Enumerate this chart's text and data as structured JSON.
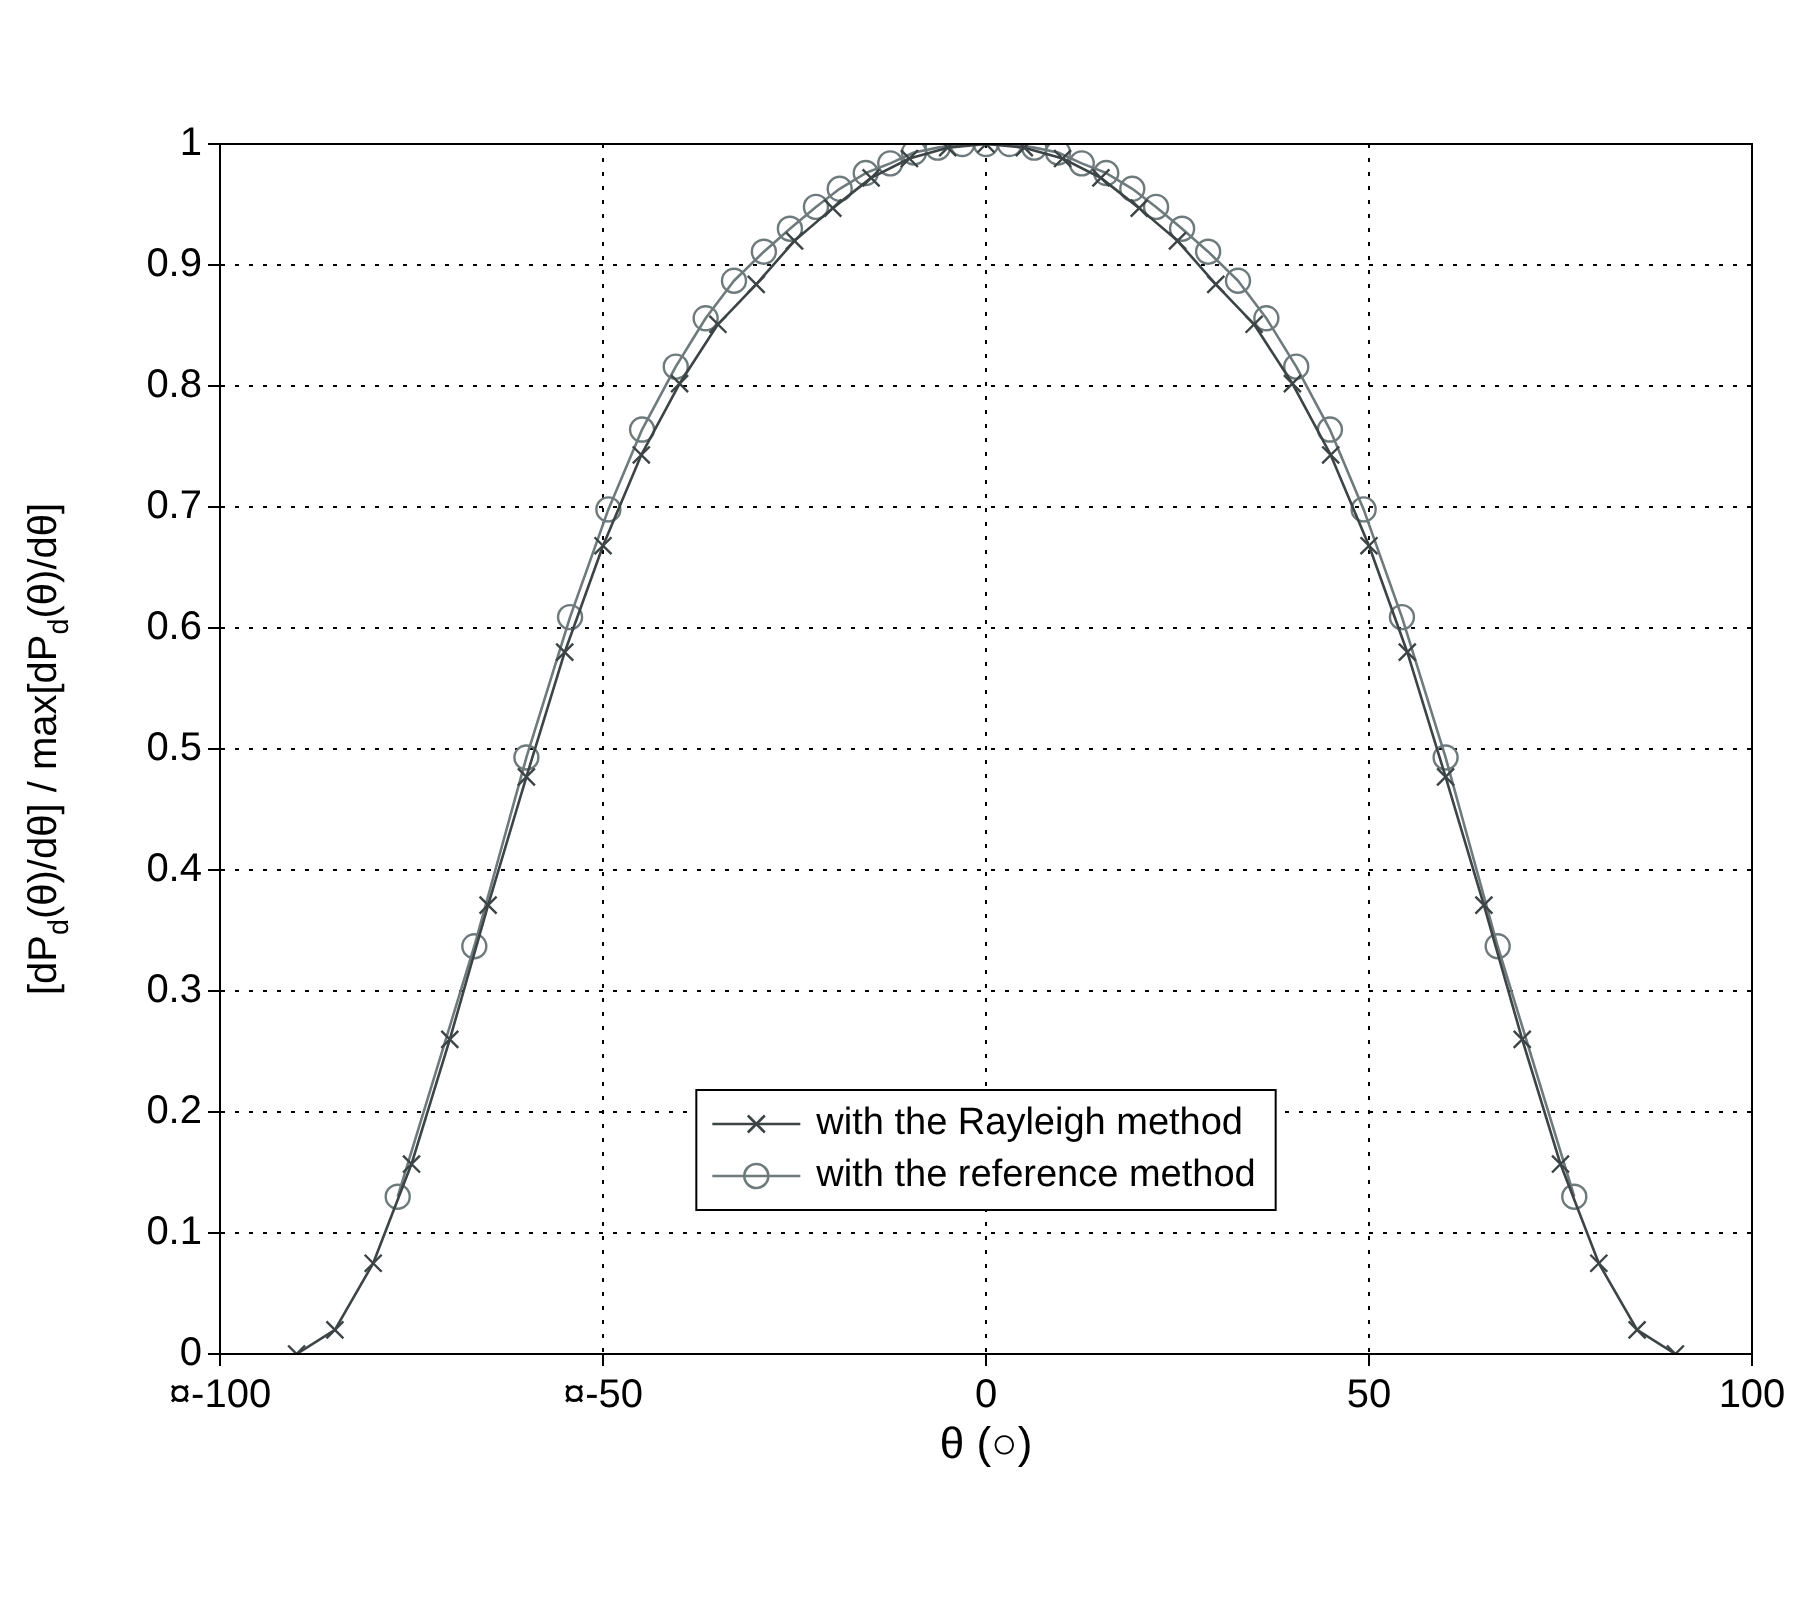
{
  "chart_data": {
    "type": "line",
    "xlabel": "θ (○)",
    "ylabel": "[dP$_{d}$(θ)/dθ] / max[dP$_{d}$(θ)/dθ]",
    "xlim": [
      -100,
      100
    ],
    "xticks": [
      {
        "value": -100,
        "label": "¤-100"
      },
      {
        "value": -50,
        "label": "¤-50"
      },
      0,
      50,
      100
    ],
    "ylim": [
      0,
      1
    ],
    "yticks": [
      0,
      0.1,
      0.2,
      0.3,
      0.4,
      0.5,
      0.6,
      0.7,
      0.8,
      0.9,
      1
    ],
    "grid": true,
    "legend": "bottom",
    "line_style": "solid",
    "series": [
      {
        "name": "with the Rayleigh method",
        "color": "#3c4446",
        "marker": "cross",
        "x": [
          -90,
          -85,
          -80,
          -75,
          -70,
          -65,
          -60,
          -55,
          -50,
          -45,
          -40,
          -35,
          -30,
          -25,
          -20,
          -15,
          -10,
          -5,
          0,
          5,
          10,
          15,
          20,
          25,
          30,
          35,
          40,
          45,
          50,
          55,
          60,
          65,
          70,
          75,
          80,
          85,
          90
        ],
        "values": [
          0,
          0.02,
          0.075,
          0.157,
          0.26,
          0.371,
          0.477,
          0.58,
          0.668,
          0.743,
          0.802,
          0.851,
          0.884,
          0.92,
          0.947,
          0.972,
          0.988,
          0.997,
          1,
          0.997,
          0.988,
          0.972,
          0.947,
          0.92,
          0.884,
          0.851,
          0.802,
          0.743,
          0.668,
          0.58,
          0.477,
          0.371,
          0.26,
          0.157,
          0.075,
          0.02,
          0
        ]
      },
      {
        "name": "with the reference method",
        "color": "#6e7a7c",
        "marker": "circle",
        "x": [
          -76.8,
          -66.8,
          -60,
          -54.3,
          -49.3,
          -44.9,
          -40.5,
          -36.6,
          -32.9,
          -29,
          -25.6,
          -22.2,
          -19.1,
          -15.7,
          -12.5,
          -9.4,
          -6.3,
          -3.1,
          0,
          3.1,
          6.3,
          9.4,
          12.5,
          15.7,
          19.1,
          22.2,
          25.6,
          29,
          32.9,
          36.6,
          40.5,
          44.9,
          49.3,
          54.3,
          60,
          66.8,
          76.8
        ],
        "values": [
          0.13,
          0.337,
          0.493,
          0.609,
          0.698,
          0.764,
          0.816,
          0.856,
          0.887,
          0.911,
          0.93,
          0.948,
          0.963,
          0.976,
          0.984,
          0.993,
          0.997,
          1,
          1,
          1,
          0.997,
          0.993,
          0.984,
          0.976,
          0.963,
          0.948,
          0.93,
          0.911,
          0.887,
          0.856,
          0.816,
          0.764,
          0.698,
          0.609,
          0.493,
          0.337,
          0.13
        ]
      }
    ]
  }
}
